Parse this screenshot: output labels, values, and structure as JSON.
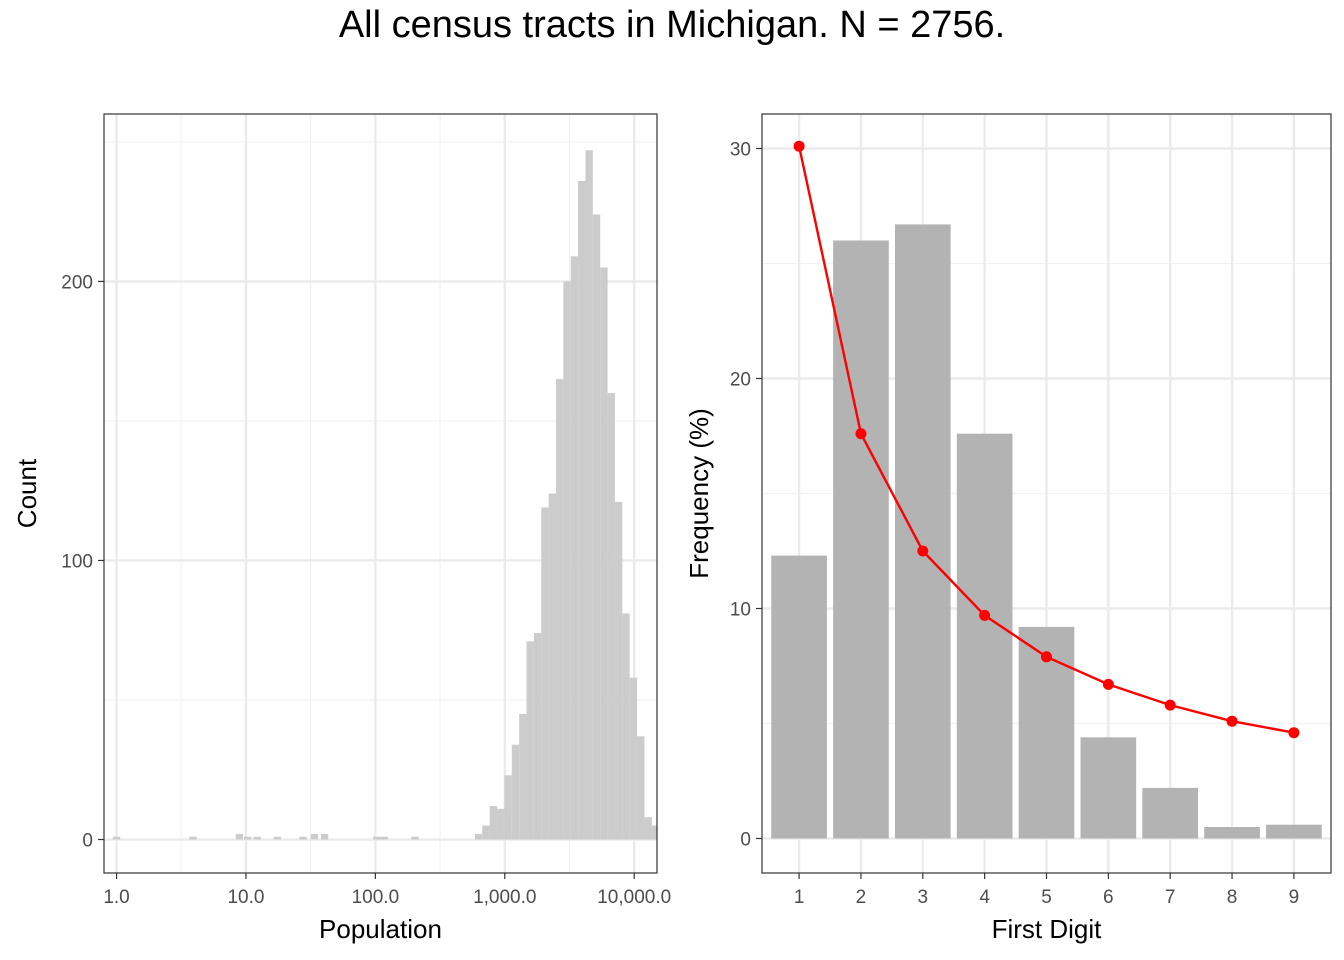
{
  "title": "All census tracts in Michigan. N = 2756.",
  "chart_data": [
    {
      "type": "bar",
      "subtype": "histogram",
      "xlabel": "Population",
      "ylabel": "Count",
      "x_scale": "log10",
      "xlim": [
        0.8,
        15000
      ],
      "ylim": [
        -12,
        260
      ],
      "x_ticks": [
        1,
        10,
        100,
        1000,
        10000
      ],
      "x_tick_labels": [
        "1.0",
        "10.0",
        "100.0",
        "1,000.0",
        "10,000.0"
      ],
      "y_ticks": [
        0,
        100,
        200
      ],
      "y_tick_labels": [
        "0",
        "100",
        "200"
      ],
      "grid": true,
      "bar_color": "#cccccc",
      "bins": [
        {
          "x": 1,
          "count": 1
        },
        {
          "x": 3.9,
          "count": 1
        },
        {
          "x": 8.9,
          "count": 2
        },
        {
          "x": 10.3,
          "count": 1
        },
        {
          "x": 12.2,
          "count": 1
        },
        {
          "x": 17.5,
          "count": 1
        },
        {
          "x": 27.6,
          "count": 1
        },
        {
          "x": 33.8,
          "count": 2
        },
        {
          "x": 40.5,
          "count": 2
        },
        {
          "x": 102.6,
          "count": 1
        },
        {
          "x": 117.1,
          "count": 1
        },
        {
          "x": 202.4,
          "count": 1
        },
        {
          "x": 627.6,
          "count": 2
        },
        {
          "x": 715.6,
          "count": 5
        },
        {
          "x": 815.8,
          "count": 12
        },
        {
          "x": 930.2,
          "count": 11
        },
        {
          "x": 1060.5,
          "count": 23
        },
        {
          "x": 1209,
          "count": 34
        },
        {
          "x": 1378.5,
          "count": 45
        },
        {
          "x": 1571.6,
          "count": 71
        },
        {
          "x": 1791.8,
          "count": 74
        },
        {
          "x": 2042.8,
          "count": 119
        },
        {
          "x": 2329,
          "count": 124
        },
        {
          "x": 2655.4,
          "count": 165
        },
        {
          "x": 3027.4,
          "count": 200
        },
        {
          "x": 3451.6,
          "count": 209
        },
        {
          "x": 3935.1,
          "count": 236
        },
        {
          "x": 4486.5,
          "count": 247
        },
        {
          "x": 5115,
          "count": 224
        },
        {
          "x": 5831.6,
          "count": 205
        },
        {
          "x": 6648.6,
          "count": 160
        },
        {
          "x": 7580.1,
          "count": 121
        },
        {
          "x": 8642.1,
          "count": 81
        },
        {
          "x": 9852.8,
          "count": 58
        },
        {
          "x": 11233.2,
          "count": 37
        },
        {
          "x": 12807,
          "count": 8
        },
        {
          "x": 14601.3,
          "count": 5
        },
        {
          "x": 16647,
          "count": 1
        }
      ]
    },
    {
      "type": "bar",
      "overlay": "line",
      "xlabel": "First Digit",
      "ylabel": "Frequency (%)",
      "ylim": [
        -1.5,
        31.5
      ],
      "y_ticks": [
        0,
        10,
        20,
        30
      ],
      "y_tick_labels": [
        "0",
        "10",
        "20",
        "30"
      ],
      "categories": [
        "1",
        "2",
        "3",
        "4",
        "5",
        "6",
        "7",
        "8",
        "9"
      ],
      "grid": true,
      "series": [
        {
          "type": "bar",
          "values": [
            12.3,
            26.0,
            26.7,
            17.6,
            9.2,
            4.4,
            2.2,
            0.5,
            0.6
          ],
          "color": "#b3b3b3"
        },
        {
          "type": "line",
          "values": [
            30.1,
            17.6,
            12.5,
            9.7,
            7.9,
            6.7,
            5.8,
            5.1,
            4.6
          ],
          "color": "#ff0000"
        }
      ]
    }
  ]
}
